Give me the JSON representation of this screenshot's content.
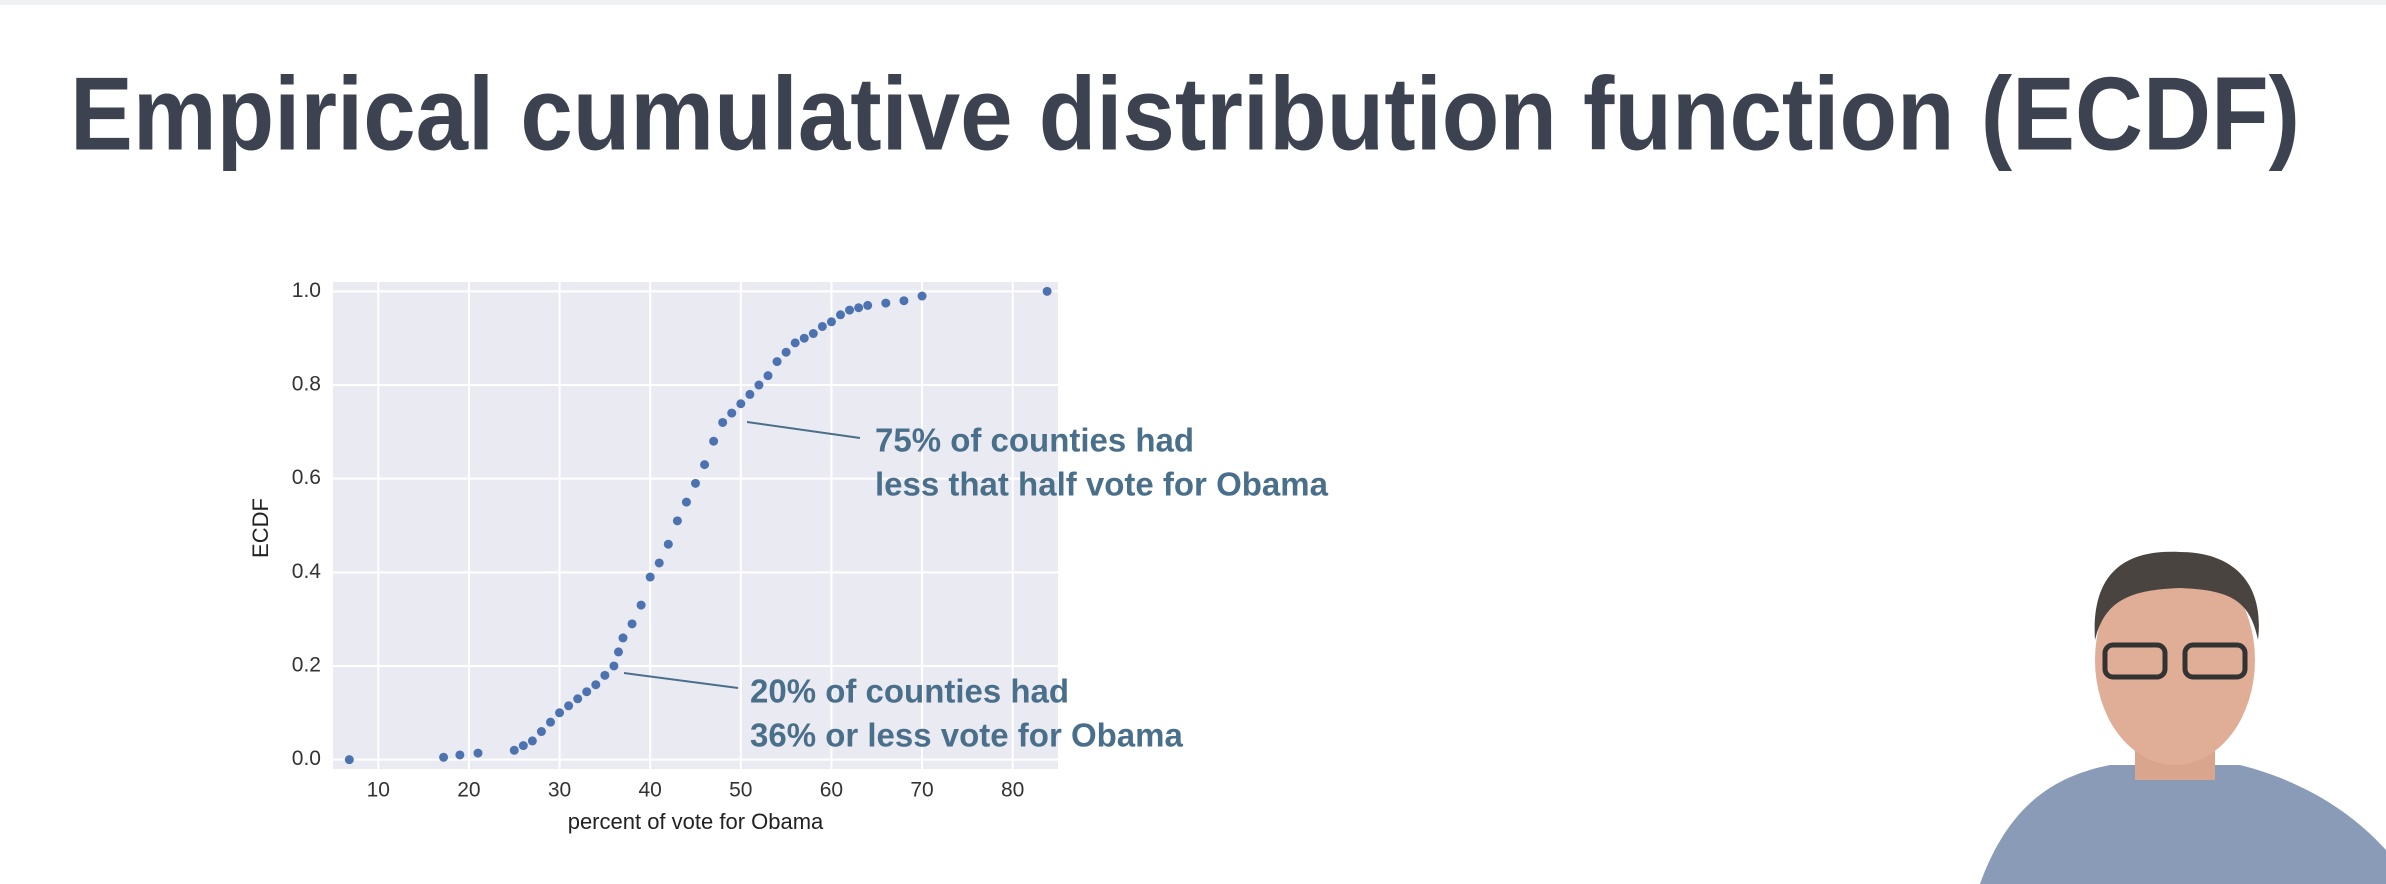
{
  "chart_data": {
    "type": "scatter",
    "title": "Empirical cumulative distribution function (ECDF)",
    "x_label": "percent of vote for Obama",
    "y_label": "ECDF",
    "color": "#4c72b0",
    "grid": true,
    "xlim": [
      5,
      85
    ],
    "ylim": [
      -0.02,
      1.02
    ],
    "xticks": [
      10,
      20,
      30,
      40,
      50,
      60,
      70,
      80
    ],
    "yticks": [
      {
        "value": 0,
        "label": "0.0"
      },
      0.2,
      0.4,
      0.6,
      0.8,
      {
        "value": 1,
        "label": "1.0"
      }
    ],
    "x": [
      6.8,
      17.2,
      19,
      21,
      25,
      26,
      27,
      28,
      29,
      30,
      31,
      32,
      33,
      34,
      35,
      36,
      36.5,
      37,
      38,
      39,
      40,
      41,
      42,
      43,
      44,
      45,
      46,
      47,
      48,
      49,
      50,
      51,
      52,
      53,
      54,
      55,
      56,
      57,
      58,
      59,
      60,
      61,
      62,
      63,
      64,
      66,
      68,
      70,
      83.8
    ],
    "values": [
      0.0,
      0.005,
      0.01,
      0.014,
      0.02,
      0.03,
      0.04,
      0.06,
      0.08,
      0.1,
      0.115,
      0.13,
      0.145,
      0.16,
      0.18,
      0.2,
      0.23,
      0.26,
      0.29,
      0.33,
      0.39,
      0.42,
      0.46,
      0.51,
      0.55,
      0.59,
      0.63,
      0.68,
      0.72,
      0.74,
      0.76,
      0.78,
      0.8,
      0.82,
      0.85,
      0.87,
      0.89,
      0.9,
      0.91,
      0.925,
      0.935,
      0.95,
      0.96,
      0.965,
      0.97,
      0.975,
      0.98,
      0.99,
      1.0
    ],
    "annotations": [
      {
        "lines": [
          "75% of counties had",
          "less that half vote for Obama"
        ]
      },
      {
        "lines": [
          "20% of counties had",
          "36% or less vote for Obama"
        ]
      }
    ]
  }
}
